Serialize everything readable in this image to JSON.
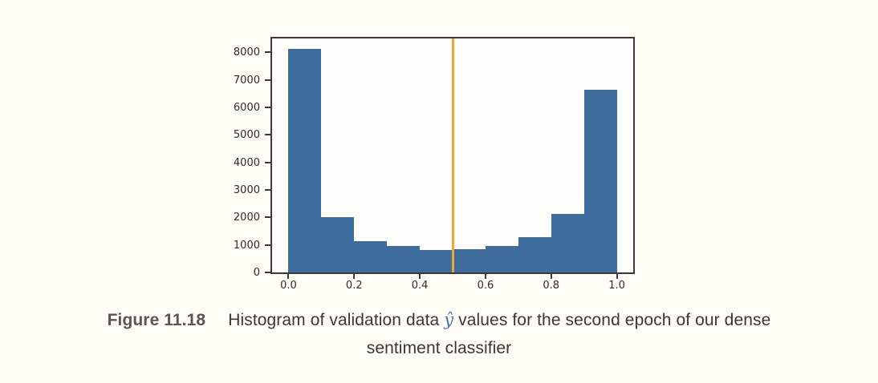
{
  "page": {
    "background_color": "#fffdf6"
  },
  "caption": {
    "label": "Figure 11.18",
    "line1_before_yhat": "Histogram of validation data ",
    "yhat_symbol": "ŷ",
    "line1_after_yhat": " values for the second epoch of our dense",
    "line2": "sentiment classifier"
  },
  "chart_data": {
    "type": "bar",
    "subtype": "histogram",
    "title": "",
    "xlabel": "",
    "ylabel": "",
    "bin_edges": [
      0.0,
      0.1,
      0.2,
      0.3,
      0.4,
      0.5,
      0.6,
      0.7,
      0.8,
      0.9,
      1.0
    ],
    "values": [
      8130,
      2000,
      1130,
      960,
      820,
      850,
      950,
      1270,
      2130,
      6650
    ],
    "xticks": [
      "0.0",
      "0.2",
      "0.4",
      "0.6",
      "0.8",
      "1.0"
    ],
    "yticks": [
      "0",
      "1000",
      "2000",
      "3000",
      "4000",
      "5000",
      "6000",
      "7000",
      "8000"
    ],
    "xlim": [
      -0.05,
      1.05
    ],
    "ylim": [
      0,
      8500
    ],
    "grid": false,
    "legend": null,
    "bar_color": "#3e6c9d",
    "vline": {
      "x": 0.5,
      "color": "#eda83d"
    },
    "spine_color": "#3a3a3a",
    "tick_label_color": "#2b2b2b"
  }
}
